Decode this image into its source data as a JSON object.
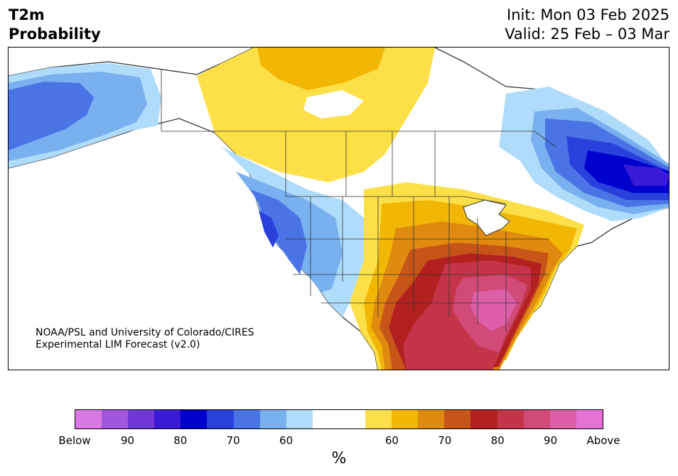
{
  "header": {
    "variable": "T2m",
    "product": "Probability",
    "init": "Init: Mon 03 Feb 2025",
    "valid": "Valid: 25 Feb – 03 Mar"
  },
  "map": {
    "credit_line1": "NOAA/PSL and University of Colorado/CIRES",
    "credit_line2": "Experimental LIM Forecast (v2.0)"
  },
  "colorbar": {
    "colors": [
      "#d977e5",
      "#a156dd",
      "#7038d6",
      "#3a1ad6",
      "#0000cf",
      "#2840dc",
      "#4a74e6",
      "#78b0f0",
      "#b0dcfb",
      "#ffffff",
      "#ffffff",
      "#fde047",
      "#f2b705",
      "#e08a10",
      "#c85518",
      "#b32020",
      "#c5354a",
      "#d14a78",
      "#dc5fa8",
      "#e573d6"
    ],
    "tick_labels": [
      "Below",
      "90",
      "80",
      "70",
      "60",
      "60",
      "70",
      "80",
      "90",
      "Above"
    ],
    "tick_fractions": [
      0,
      0.1,
      0.2,
      0.3,
      0.4,
      0.6,
      0.7,
      0.8,
      0.9,
      1.0
    ],
    "unit": "%"
  },
  "categories": {
    "below": {
      "colors": {
        "p60": "#b0dcfb",
        "p65": "#78b0f0",
        "p70": "#4a74e6",
        "p75": "#2840dc",
        "p80": "#0000cf",
        "p85": "#3a1ad6"
      }
    },
    "above": {
      "colors": {
        "p60": "#fde047",
        "p65": "#f2b705",
        "p70": "#e08a10",
        "p75": "#c85518",
        "p80": "#b32020",
        "p85": "#c5354a",
        "p90": "#d14a78",
        "p95": "#dc5fa8"
      }
    }
  }
}
